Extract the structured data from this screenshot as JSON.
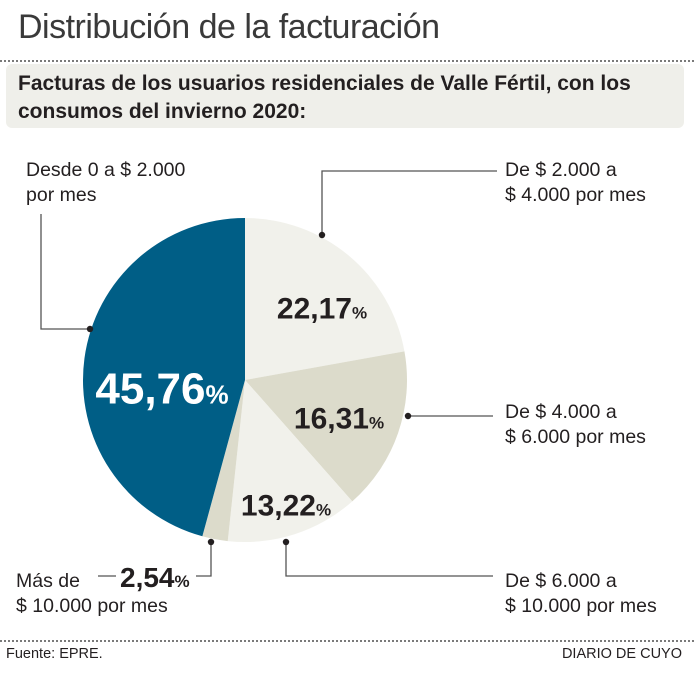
{
  "header": {
    "title": "Distribución de la facturación",
    "subtitle": "Facturas de los usuarios residenciales de Valle Fértil, con los consumos del invierno 2020:"
  },
  "footer": {
    "source": "Fuente: EPRE.",
    "credit": "DIARIO DE CUYO"
  },
  "colors": {
    "blue": "#005e86",
    "light": "#f1f1eb",
    "tan": "#dcdbcb",
    "text": "#231f20",
    "leader": "#555555"
  },
  "chart_data": {
    "type": "pie",
    "title": "Distribución de la facturación",
    "subtitle": "Facturas de los usuarios residenciales de Valle Fértil, con los consumos del invierno 2020:",
    "unit": "%",
    "slices": [
      {
        "label_line1": "De $ 2.000 a",
        "label_line2": "$ 4.000 por mes",
        "value": 22.17,
        "display": "22,17",
        "color": "#f1f1eb"
      },
      {
        "label_line1": "De $ 4.000 a",
        "label_line2": "$ 6.000 por mes",
        "value": 16.31,
        "display": "16,31",
        "color": "#dcdbcb"
      },
      {
        "label_line1": "De $ 6.000 a",
        "label_line2": "$ 10.000 por mes",
        "value": 13.22,
        "display": "13,22",
        "color": "#f1f1eb"
      },
      {
        "label_line1": "Más de",
        "label_line2": "$ 10.000 por mes",
        "value": 2.54,
        "display": "2,54",
        "color": "#dcdbcb"
      },
      {
        "label_line1": "Desde 0 a $ 2.000",
        "label_line2": "por mes",
        "value": 45.76,
        "display": "45,76",
        "color": "#005e86"
      }
    ],
    "source": "Fuente: EPRE."
  }
}
